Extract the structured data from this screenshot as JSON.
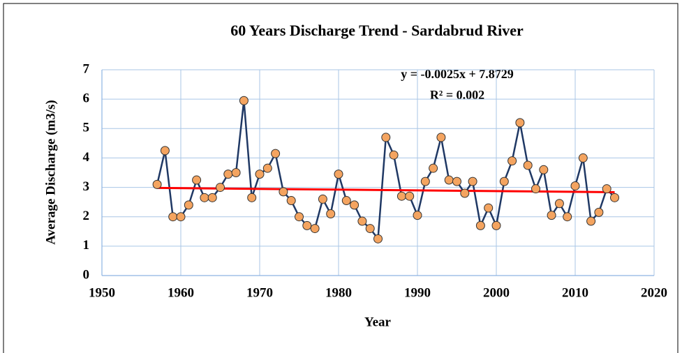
{
  "chart_data": {
    "type": "line",
    "title": "60 Years Discharge Trend - Sardabrud River",
    "x_label": "Year",
    "y_label": "Average Discharge (m3/s)",
    "x": [
      1957,
      1958,
      1959,
      1960,
      1961,
      1962,
      1963,
      1964,
      1965,
      1966,
      1967,
      1968,
      1969,
      1970,
      1971,
      1972,
      1973,
      1974,
      1975,
      1976,
      1977,
      1978,
      1979,
      1980,
      1981,
      1982,
      1983,
      1984,
      1985,
      1986,
      1987,
      1988,
      1989,
      1990,
      1991,
      1992,
      1993,
      1994,
      1995,
      1996,
      1997,
      1998,
      1999,
      2000,
      2001,
      2002,
      2003,
      2004,
      2005,
      2006,
      2007,
      2008,
      2009,
      2010,
      2011,
      2012,
      2013,
      2014,
      2015
    ],
    "series": [
      {
        "color": "#1f3864",
        "marker_color": "#f4a460",
        "values": [
          3.1,
          4.25,
          2.0,
          2.0,
          2.4,
          3.25,
          2.65,
          2.65,
          3.0,
          3.45,
          3.5,
          5.95,
          2.65,
          3.45,
          3.65,
          4.15,
          2.85,
          2.55,
          2.0,
          1.7,
          1.6,
          2.6,
          2.1,
          3.45,
          2.55,
          2.4,
          1.85,
          1.6,
          1.25,
          4.7,
          4.1,
          2.7,
          2.7,
          2.05,
          3.2,
          3.65,
          4.7,
          3.25,
          3.2,
          2.8,
          3.2,
          1.7,
          2.3,
          1.7,
          3.2,
          3.9,
          5.2,
          3.75,
          2.95,
          3.6,
          2.05,
          2.45,
          2.0,
          3.05,
          4.0,
          1.85,
          2.15,
          2.95,
          2.65
        ]
      }
    ],
    "trendline": {
      "equation": "y = -0.0025x + 7.8729",
      "r_squared": "R² = 0.002",
      "slope": -0.0025,
      "intercept": 7.8729,
      "color": "#ff0000"
    },
    "xlim": [
      1950,
      2020
    ],
    "xticks": [
      1950,
      1960,
      1970,
      1980,
      1990,
      2000,
      2010,
      2020
    ],
    "ylim": [
      0,
      7
    ],
    "yticks": [
      0,
      1,
      2,
      3,
      4,
      5,
      6,
      7
    ],
    "grid": true
  }
}
